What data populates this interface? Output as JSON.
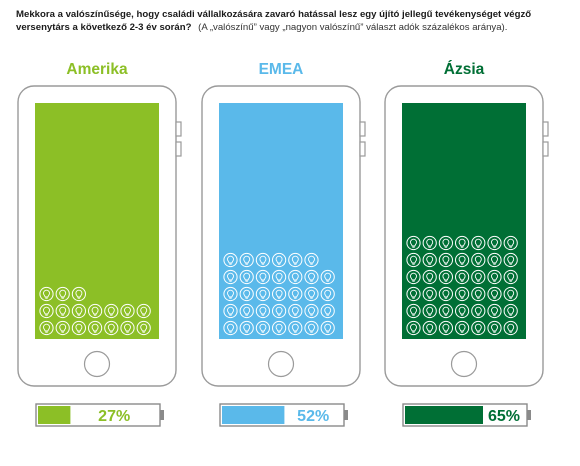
{
  "header": {
    "title": "Mekkora a valószínűsége, hogy családi vállalkozására zavaró hatással lesz egy újító jellegű tevékenységet végző versenytárs a következő 2-3 év során?",
    "subtitle": "(A „valószínű” vagy „nagyon valószínű” választ adók százalékos aránya)."
  },
  "colors": {
    "amerika": "#8cbf26",
    "emea": "#5ab9ea",
    "azsia": "#006f35",
    "phone_outline": "#9a9a9a",
    "battery_outline": "#8a8a8a"
  },
  "chart_data": {
    "type": "bar",
    "title": "Mekkora a valószínűsége, hogy családi vállalkozására zavaró hatással lesz egy újító jellegű tevékenységet végző versenytárs a következő 2-3 év során?",
    "categories": [
      "Amerika",
      "EMEA",
      "Ázsia"
    ],
    "values": [
      27,
      52,
      65
    ],
    "value_labels": [
      "27%",
      "52%",
      "65%"
    ],
    "unit": "%",
    "ylim": [
      0,
      100
    ],
    "icon": "lightbulb-icon",
    "icons_per_row": 7,
    "grid": false,
    "legend": "none"
  }
}
